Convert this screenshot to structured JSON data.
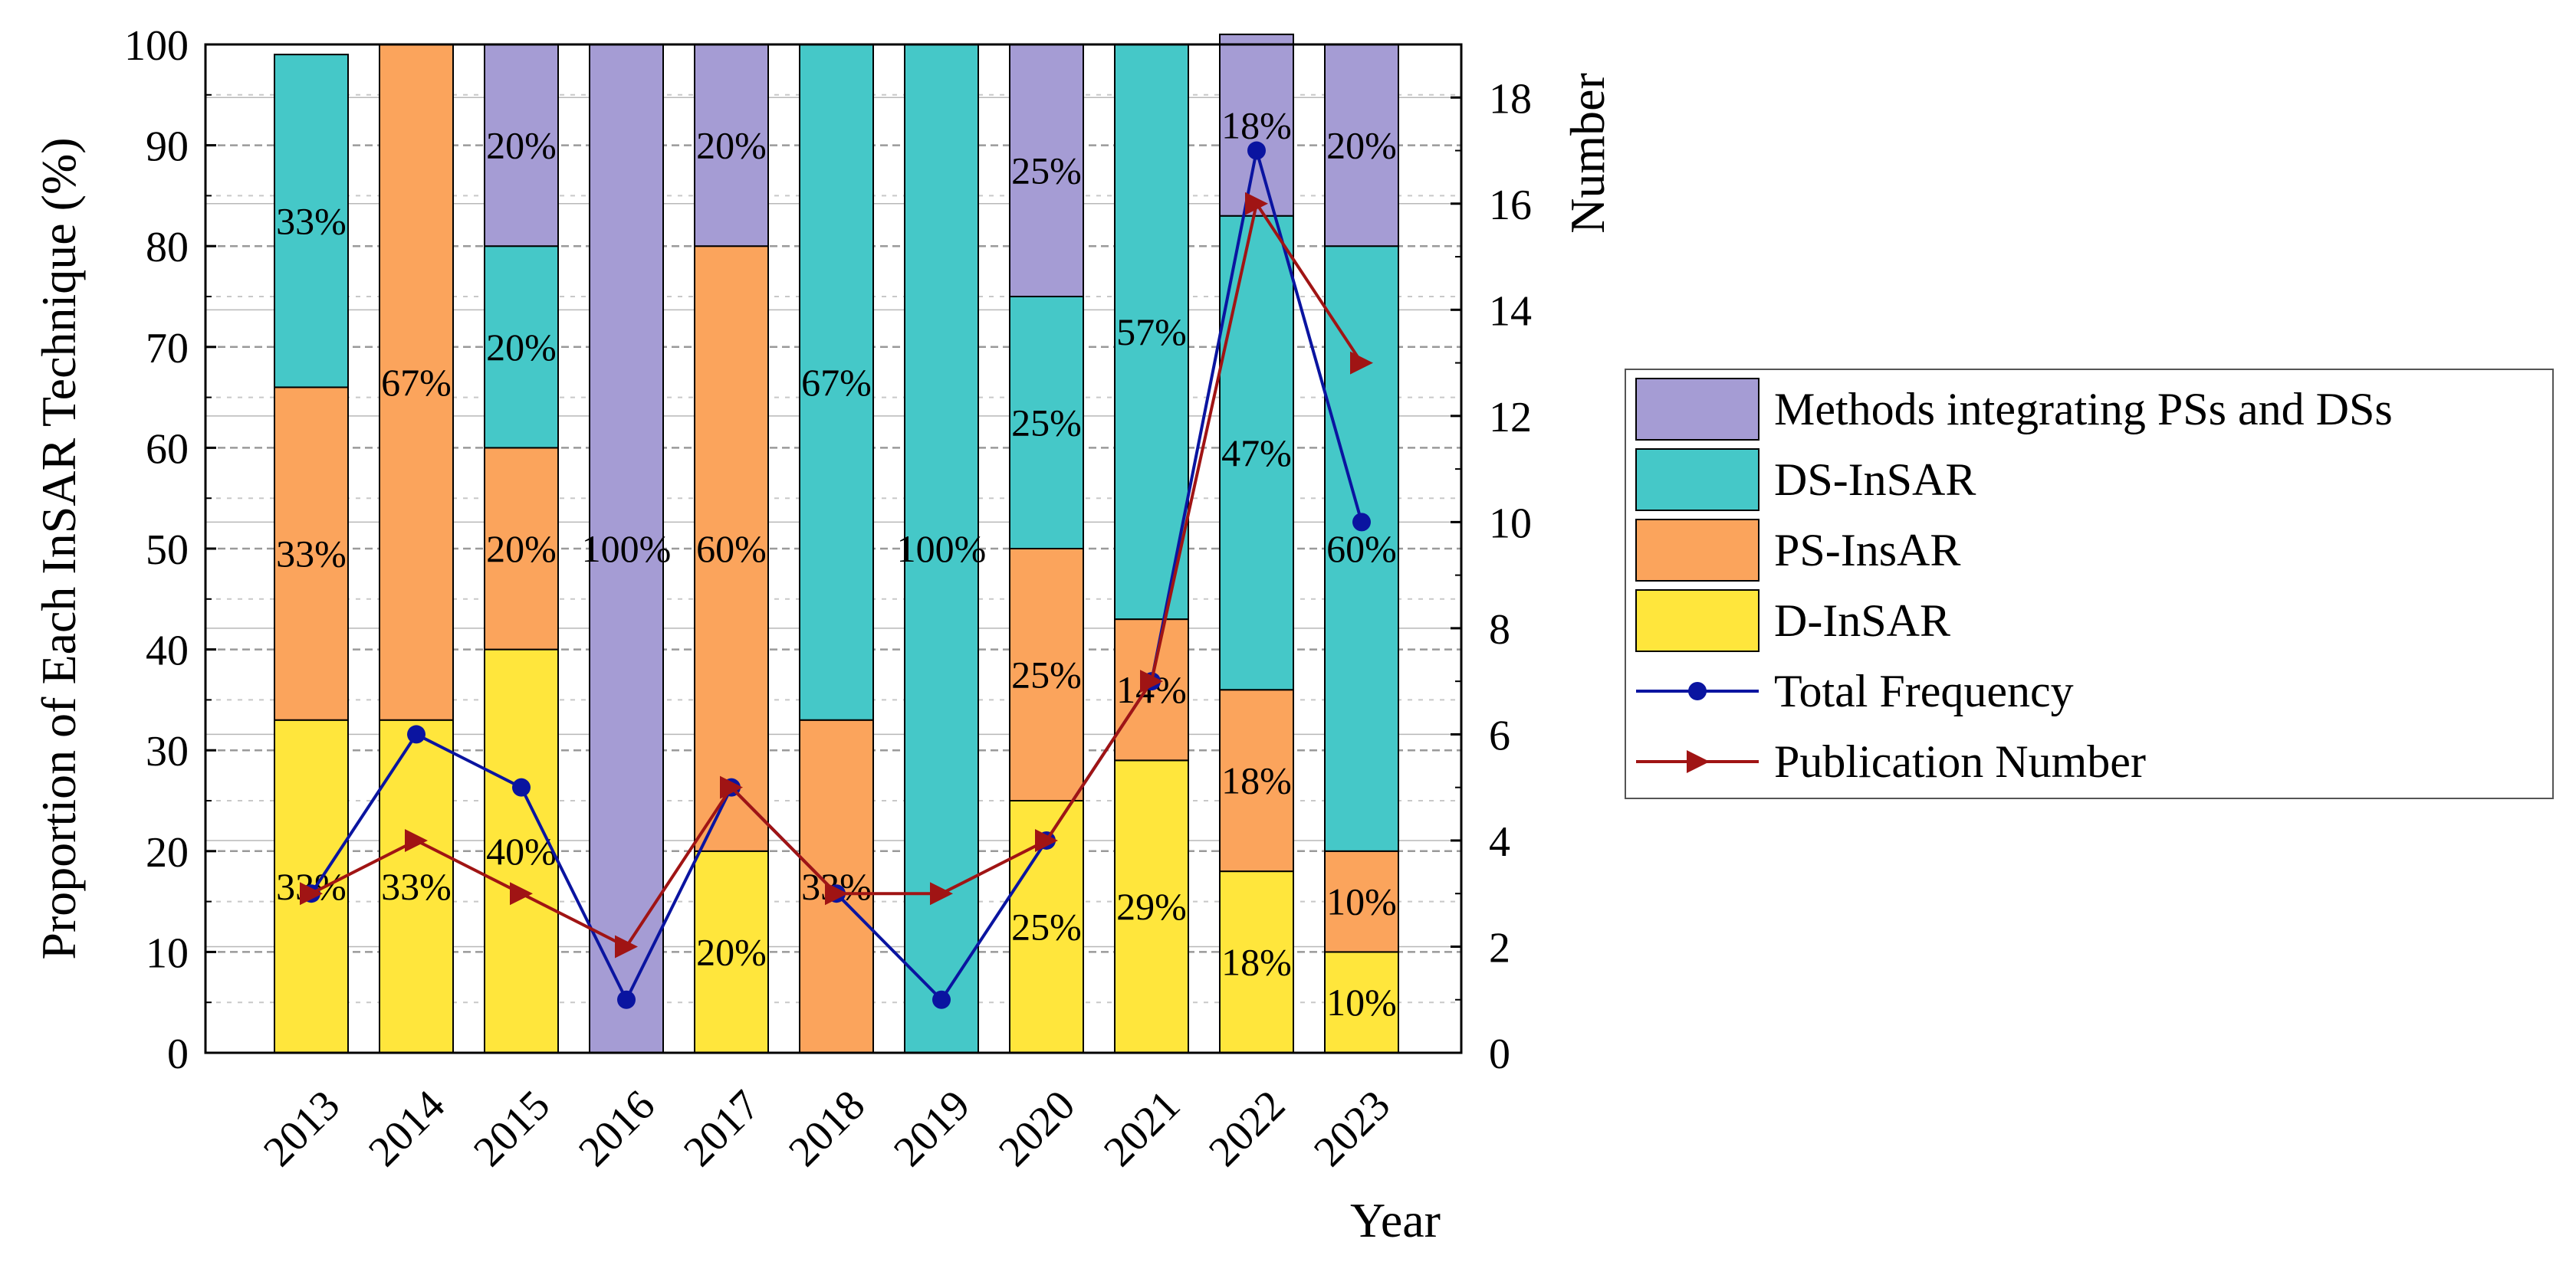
{
  "chart_data": {
    "type": "bar",
    "stacked": true,
    "categories": [
      "2013",
      "2014",
      "2015",
      "2016",
      "2017",
      "2018",
      "2019",
      "2020",
      "2021",
      "2022",
      "2023"
    ],
    "series": [
      {
        "name": "D-InSAR",
        "color": "#FFE63C",
        "values": [
          33,
          33,
          40,
          0,
          20,
          0,
          0,
          25,
          29,
          18,
          10
        ],
        "labels": [
          "33%",
          "33%",
          "40%",
          "",
          "20%",
          "",
          "",
          "25%",
          "29%",
          "18%",
          "10%"
        ]
      },
      {
        "name": "PS-InsAR",
        "color": "#FBA45C",
        "values": [
          33,
          67,
          20,
          0,
          60,
          33,
          0,
          25,
          14,
          18,
          10
        ],
        "labels": [
          "33%",
          "67%",
          "20%",
          "",
          "60%",
          "33%",
          "",
          "25%",
          "14%",
          "18%",
          "10%"
        ]
      },
      {
        "name": "DS-InSAR",
        "color": "#45C8C8",
        "values": [
          33,
          0,
          20,
          0,
          0,
          67,
          100,
          25,
          57,
          47,
          60
        ],
        "labels": [
          "33%",
          "",
          "20%",
          "",
          "",
          "67%",
          "100%",
          "25%",
          "57%",
          "47%",
          "60%"
        ]
      },
      {
        "name": "Methods integrating PSs and DSs",
        "color": "#A59CD4",
        "values": [
          0,
          0,
          20,
          100,
          20,
          0,
          0,
          25,
          0,
          18,
          20
        ],
        "labels": [
          "",
          "",
          "20%",
          "100%",
          "20%",
          "",
          "",
          "25%",
          "",
          "18%",
          "20%"
        ]
      }
    ],
    "lines": [
      {
        "name": "Total Frequency",
        "color": "#0A14A0",
        "marker": "circle",
        "axis": "right",
        "values": [
          3,
          6,
          5,
          1,
          5,
          3,
          1,
          4,
          7,
          17,
          10
        ]
      },
      {
        "name": "Publication Number",
        "color": "#A01414",
        "marker": "triangle-right",
        "axis": "right",
        "values": [
          3,
          4,
          3,
          2,
          5,
          3,
          3,
          4,
          7,
          16,
          13
        ]
      }
    ],
    "title": "",
    "xlabel": "Year",
    "ylabel": "Proportion of Each InSAR Technique (%)",
    "ylabel_right": "Number",
    "ylim": [
      0,
      100
    ],
    "ylim_right": [
      0,
      19
    ],
    "yticks": [
      "0",
      "10",
      "20",
      "30",
      "40",
      "50",
      "60",
      "70",
      "80",
      "90",
      "100"
    ],
    "yticks_right": [
      "0",
      "2",
      "4",
      "6",
      "8",
      "10",
      "12",
      "14",
      "16",
      "18"
    ],
    "legend_order": [
      "Methods integrating PSs and DSs",
      "DS-InSAR",
      "PS-InsAR",
      "D-InSAR",
      "Total Frequency",
      "Publication Number"
    ],
    "legend_position": "right",
    "grid": "dashed horizontal"
  }
}
